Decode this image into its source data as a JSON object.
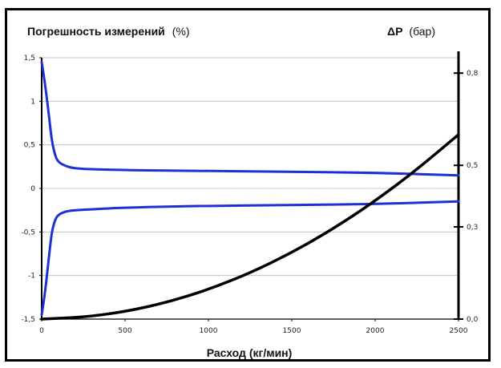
{
  "chart_data": {
    "type": "line",
    "title_left": {
      "bold": "Погрешность измерений",
      "light": "(%)"
    },
    "title_right": {
      "bold": "(бар)",
      "light": "ΔP"
    },
    "xlabel": "Расход (кг/мин)",
    "xlim": [
      0,
      2500
    ],
    "ylim_left": [
      -1.5,
      1.5
    ],
    "ylim_right": [
      0.0,
      0.85
    ],
    "x_ticks": [
      {
        "value": 0,
        "label": "0"
      },
      {
        "value": 500,
        "label": "500"
      },
      {
        "value": 1000,
        "label": "1000"
      },
      {
        "value": 1500,
        "label": "1500"
      },
      {
        "value": 2000,
        "label": "2000"
      },
      {
        "value": 2500,
        "label": "2500"
      }
    ],
    "y_ticks_left": [
      {
        "value": 1.5,
        "label": "1,5"
      },
      {
        "value": 1.0,
        "label": "1"
      },
      {
        "value": 0.5,
        "label": "0,5"
      },
      {
        "value": 0.0,
        "label": "0"
      },
      {
        "value": -0.5,
        "label": "-0,5"
      },
      {
        "value": -1.0,
        "label": "-1"
      },
      {
        "value": -1.5,
        "label": "-1,5"
      }
    ],
    "y_ticks_right": [
      {
        "value": 0.8,
        "label": "0,8"
      },
      {
        "value": 0.5,
        "label": "0,5"
      },
      {
        "value": 0.3,
        "label": "0,3"
      },
      {
        "value": 0.0,
        "label": "0,0"
      }
    ],
    "grid": true,
    "series": [
      {
        "axis": "left",
        "color": "#1f2fd6",
        "x": [
          0,
          20,
          40,
          60,
          80,
          100,
          150,
          200,
          300,
          500,
          1000,
          1500,
          2000,
          2500
        ],
        "y": [
          1.45,
          1.2,
          0.9,
          0.55,
          0.38,
          0.3,
          0.25,
          0.23,
          0.22,
          0.21,
          0.2,
          0.19,
          0.18,
          0.15
        ]
      },
      {
        "axis": "left",
        "color": "#1f2fd6",
        "x": [
          0,
          20,
          40,
          60,
          80,
          100,
          150,
          200,
          300,
          500,
          1000,
          1500,
          2000,
          2500
        ],
        "y": [
          -1.45,
          -1.2,
          -0.85,
          -0.5,
          -0.36,
          -0.3,
          -0.26,
          -0.25,
          -0.24,
          -0.22,
          -0.2,
          -0.19,
          -0.18,
          -0.15
        ]
      },
      {
        "axis": "right",
        "color": "#000000",
        "x": [
          0,
          250,
          500,
          750,
          1000,
          1250,
          1500,
          1750,
          2000,
          2250,
          2500
        ],
        "y": [
          0.0,
          0.006,
          0.024,
          0.054,
          0.096,
          0.15,
          0.216,
          0.294,
          0.384,
          0.486,
          0.6
        ]
      }
    ]
  }
}
